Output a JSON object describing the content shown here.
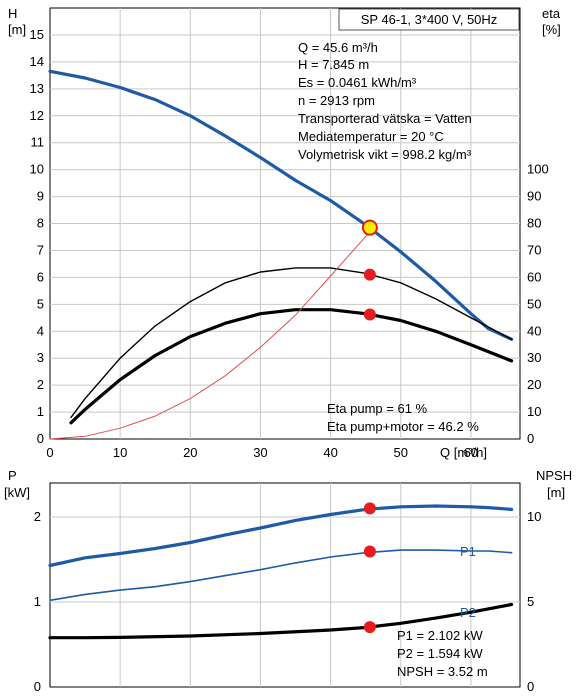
{
  "chart_data": [
    {
      "type": "line",
      "title": "SP 46-1, 3*400 V, 50Hz",
      "left_axis": {
        "label": "H",
        "unit": "[m]",
        "ylim": [
          0,
          16
        ],
        "ticks": [
          "0",
          "1",
          "2",
          "3",
          "4",
          "5",
          "6",
          "7",
          "8",
          "9",
          "10",
          "11",
          "12",
          "13",
          "14",
          "15"
        ]
      },
      "right_axis": {
        "label": "eta",
        "unit": "[%]",
        "ylim": [
          0,
          160
        ],
        "ticks": [
          "0",
          "10",
          "20",
          "30",
          "40",
          "50",
          "60",
          "70",
          "80",
          "90",
          "100"
        ]
      },
      "x_axis": {
        "label": "Q [m³/h]",
        "xlim": [
          0,
          67
        ],
        "ticks": [
          "0",
          "10",
          "20",
          "30",
          "40",
          "50",
          "60"
        ]
      },
      "grid": true,
      "info_lines": [
        "Q = 45.6 m³/h",
        "H = 7.845 m",
        "Es = 0.0461 kWh/m³",
        "n = 2913 rpm",
        "Transporterad vätska = Vatten",
        "Mediatemperatur = 20 °C",
        "Volymetrisk vikt = 998.2 kg/m³"
      ],
      "eta_lines": [
        "Eta pump = 61 %",
        "Eta pump+motor = 46.2 %"
      ],
      "series": [
        {
          "role": "head",
          "color": "#1f5aa6",
          "x": [
            0,
            5,
            10,
            15,
            20,
            25,
            30,
            35,
            40,
            45,
            50,
            55,
            60,
            62.5,
            65.8
          ],
          "y": [
            13.65,
            13.4,
            13.05,
            12.6,
            12.0,
            11.25,
            10.45,
            9.6,
            8.85,
            7.95,
            6.95,
            5.85,
            4.65,
            4.1,
            3.7
          ]
        },
        {
          "role": "eta-pump",
          "color": "#000000",
          "x": [
            3,
            5,
            10,
            15,
            20,
            25,
            30,
            35,
            40,
            45,
            50,
            55,
            60,
            65.8
          ],
          "y": [
            8,
            15,
            30,
            42,
            51,
            58,
            62,
            63.5,
            63.5,
            61.5,
            58,
            52,
            45,
            37
          ]
        },
        {
          "role": "eta-pump-motor",
          "color": "#000000",
          "x": [
            3,
            5,
            10,
            15,
            20,
            25,
            30,
            35,
            40,
            45,
            50,
            55,
            60,
            65.8
          ],
          "y": [
            6,
            11,
            22,
            31,
            38,
            43,
            46.5,
            48,
            48,
            46.5,
            44,
            40,
            35,
            29
          ]
        },
        {
          "role": "system-curve",
          "color": "#e05050",
          "x": [
            0,
            5,
            10,
            15,
            20,
            25,
            30,
            35,
            40,
            46.3
          ],
          "y": [
            0,
            1,
            4,
            8.5,
            15,
            23.5,
            34,
            46,
            60.5,
            79
          ]
        }
      ],
      "markers": [
        {
          "axis": "left",
          "x": 45.6,
          "y": 7.845,
          "style": "duty"
        },
        {
          "axis": "right",
          "x": 45.6,
          "y": 61,
          "style": "dot"
        },
        {
          "axis": "right",
          "x": 45.6,
          "y": 46.2,
          "style": "dot"
        }
      ]
    },
    {
      "type": "line",
      "left_axis": {
        "label": "P",
        "unit": "[kW]",
        "ylim": [
          0,
          2.4
        ],
        "ticks": [
          "0",
          "1",
          "2"
        ]
      },
      "right_axis": {
        "label": "NPSH",
        "unit": "[m]",
        "ylim": [
          0,
          12
        ],
        "ticks": [
          "0",
          "5",
          "10"
        ]
      },
      "x_axis": {
        "xlim": [
          0,
          67
        ]
      },
      "grid": true,
      "info_lines": [
        "P1 = 2.102 kW",
        "P2 = 1.594 kW",
        "NPSH = 3.52 m"
      ],
      "series": [
        {
          "name": "P1",
          "color": "#1f5aa6",
          "x": [
            0,
            5,
            10,
            15,
            20,
            25,
            30,
            35,
            40,
            45,
            50,
            55,
            60,
            62.5,
            65.8
          ],
          "y": [
            1.43,
            1.52,
            1.57,
            1.63,
            1.7,
            1.79,
            1.87,
            1.96,
            2.03,
            2.09,
            2.12,
            2.13,
            2.12,
            2.11,
            2.09
          ]
        },
        {
          "name": "P2",
          "color": "#1f5aa6",
          "x": [
            0,
            5,
            10,
            15,
            20,
            25,
            30,
            35,
            40,
            45,
            50,
            55,
            60,
            62.5,
            65.8
          ],
          "y": [
            1.02,
            1.09,
            1.14,
            1.18,
            1.24,
            1.31,
            1.38,
            1.46,
            1.53,
            1.58,
            1.61,
            1.61,
            1.6,
            1.6,
            1.58
          ]
        },
        {
          "role": "npsh",
          "axis": "right",
          "color": "#000000",
          "x": [
            0,
            5,
            10,
            20,
            30,
            40,
            45,
            50,
            55,
            60,
            65.8
          ],
          "y": [
            2.9,
            2.9,
            2.92,
            3.0,
            3.15,
            3.35,
            3.5,
            3.75,
            4.05,
            4.4,
            4.85
          ]
        }
      ],
      "markers": [
        {
          "axis": "left",
          "x": 45.6,
          "y": 2.102,
          "style": "dot"
        },
        {
          "axis": "left",
          "x": 45.6,
          "y": 1.594,
          "style": "dot"
        },
        {
          "axis": "right",
          "x": 45.6,
          "y": 3.52,
          "style": "dot"
        }
      ]
    }
  ]
}
